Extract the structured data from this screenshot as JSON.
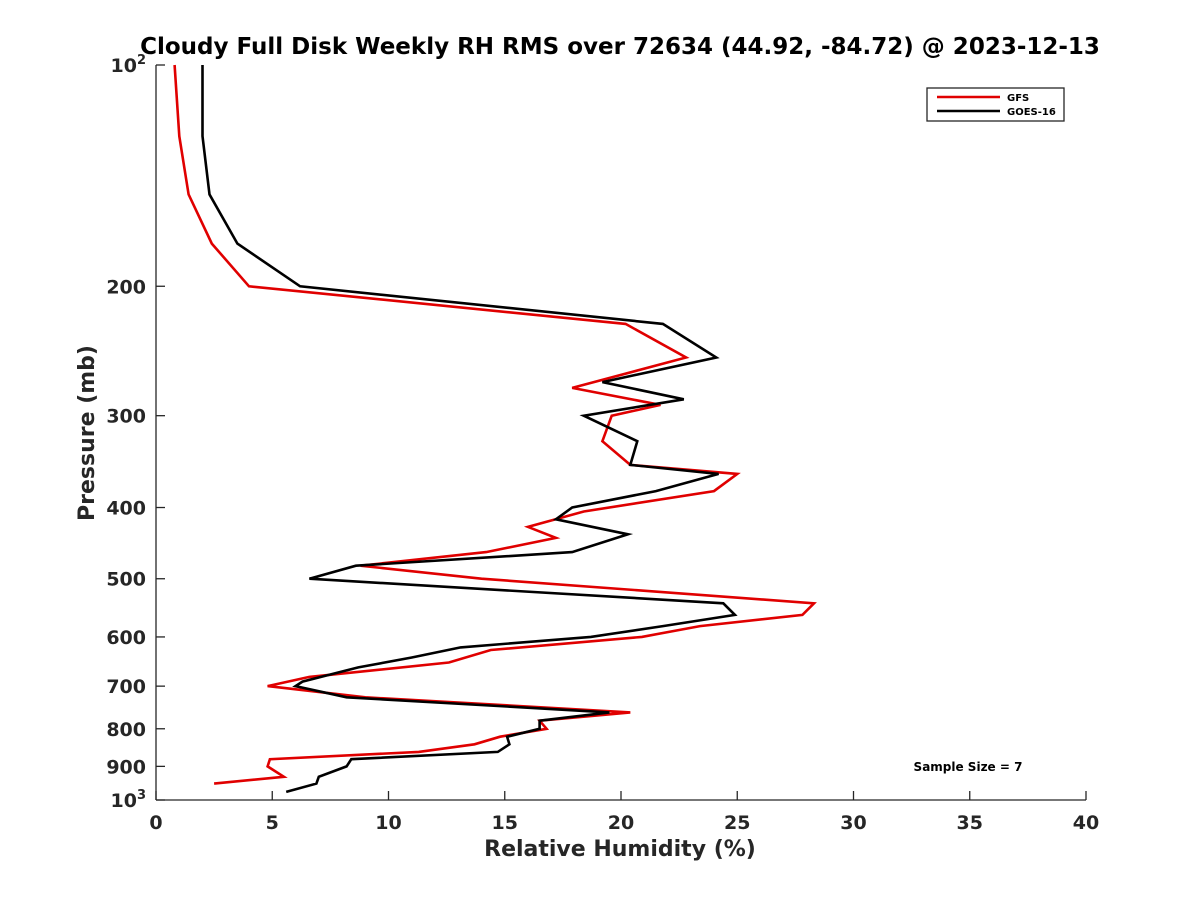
{
  "chart_data": {
    "type": "line",
    "title": "Cloudy Full Disk Weekly RH RMS over 72634 (44.92, -84.72) @ 2023-12-13",
    "xlabel": "Relative Humidity (%)",
    "ylabel": "Pressure (mb)",
    "xlim": [
      0,
      40
    ],
    "ylim": [
      100,
      1000
    ],
    "yscale": "log",
    "y_reversed": true,
    "grid": false,
    "legend_position": "top-right",
    "x_ticks": [
      "0",
      "5",
      "10",
      "15",
      "20",
      "25",
      "30",
      "35",
      "40"
    ],
    "y_ticks": [
      {
        "value": 100,
        "base": "10",
        "exp": "2"
      },
      {
        "value": 200,
        "label": "200"
      },
      {
        "value": 300,
        "label": "300"
      },
      {
        "value": 400,
        "label": "400"
      },
      {
        "value": 500,
        "label": "500"
      },
      {
        "value": 600,
        "label": "600"
      },
      {
        "value": 700,
        "label": "700"
      },
      {
        "value": 800,
        "label": "800"
      },
      {
        "value": 900,
        "label": "900"
      },
      {
        "value": 1000,
        "base": "10",
        "exp": "3"
      }
    ],
    "annotation": "Sample Size = 7",
    "series": [
      {
        "name": "GFS",
        "color": "#e00000",
        "points": [
          [
            0.8,
            100
          ],
          [
            1.0,
            125
          ],
          [
            1.4,
            150
          ],
          [
            2.4,
            175
          ],
          [
            4.0,
            200
          ],
          [
            20.2,
            225
          ],
          [
            22.8,
            250
          ],
          [
            17.9,
            275
          ],
          [
            21.7,
            290
          ],
          [
            19.6,
            300
          ],
          [
            19.2,
            325
          ],
          [
            20.4,
            350
          ],
          [
            25.0,
            360
          ],
          [
            24.0,
            380
          ],
          [
            18.4,
            405
          ],
          [
            16.0,
            425
          ],
          [
            17.2,
            440
          ],
          [
            14.2,
            460
          ],
          [
            8.8,
            480
          ],
          [
            14.0,
            500
          ],
          [
            28.3,
            540
          ],
          [
            27.8,
            560
          ],
          [
            23.4,
            580
          ],
          [
            20.9,
            600
          ],
          [
            14.4,
            625
          ],
          [
            12.6,
            650
          ],
          [
            6.6,
            680
          ],
          [
            4.8,
            700
          ],
          [
            9.0,
            725
          ],
          [
            20.4,
            760
          ],
          [
            16.5,
            780
          ],
          [
            16.8,
            800
          ],
          [
            14.8,
            820
          ],
          [
            13.7,
            840
          ],
          [
            11.3,
            860
          ],
          [
            4.9,
            880
          ],
          [
            4.8,
            900
          ],
          [
            5.5,
            930
          ],
          [
            2.5,
            950
          ]
        ]
      },
      {
        "name": "GOES-16",
        "color": "#000000",
        "points": [
          [
            2.0,
            100
          ],
          [
            2.0,
            125
          ],
          [
            2.3,
            150
          ],
          [
            3.5,
            175
          ],
          [
            6.2,
            200
          ],
          [
            21.8,
            225
          ],
          [
            24.1,
            250
          ],
          [
            19.2,
            270
          ],
          [
            22.7,
            285
          ],
          [
            18.4,
            300
          ],
          [
            20.7,
            325
          ],
          [
            20.4,
            350
          ],
          [
            24.2,
            360
          ],
          [
            21.5,
            380
          ],
          [
            17.9,
            400
          ],
          [
            17.2,
            415
          ],
          [
            20.3,
            435
          ],
          [
            17.9,
            460
          ],
          [
            8.6,
            480
          ],
          [
            6.6,
            500
          ],
          [
            24.4,
            540
          ],
          [
            24.9,
            560
          ],
          [
            21.8,
            580
          ],
          [
            18.7,
            600
          ],
          [
            13.1,
            620
          ],
          [
            11.0,
            640
          ],
          [
            8.7,
            660
          ],
          [
            6.3,
            690
          ],
          [
            6.0,
            700
          ],
          [
            8.2,
            725
          ],
          [
            19.5,
            760
          ],
          [
            16.5,
            780
          ],
          [
            16.5,
            800
          ],
          [
            15.1,
            820
          ],
          [
            15.2,
            840
          ],
          [
            14.7,
            860
          ],
          [
            8.4,
            880
          ],
          [
            8.2,
            900
          ],
          [
            7.0,
            930
          ],
          [
            6.9,
            950
          ],
          [
            5.6,
            975
          ]
        ]
      }
    ]
  }
}
